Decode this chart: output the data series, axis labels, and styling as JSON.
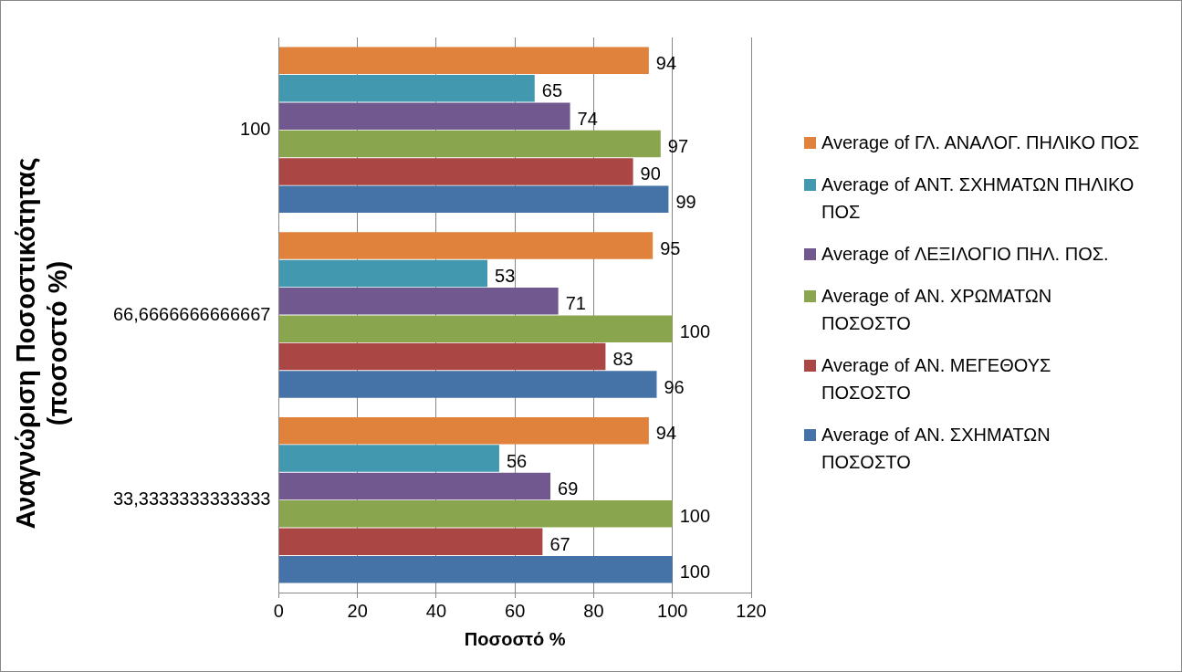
{
  "chart_data": {
    "type": "bar",
    "orientation": "horizontal",
    "xlabel": "Ποσοστό %",
    "ylabel": "Αναγνώριση Ποσοστικότητας (ποσοστό %)",
    "categories": [
      "100",
      "66,6666666666667",
      "33,3333333333333"
    ],
    "series": [
      {
        "name": "Average of ΓΛ. ΑΝΑΛΟΓ. ΠΗΛΙΚΟ ΠΟΣ",
        "color": "#e0823c",
        "values": [
          94,
          95,
          94
        ]
      },
      {
        "name": "Average of ΑΝΤ. ΣΧΗΜΑΤΩΝ ΠΗΛΙΚΟ ΠΟΣ",
        "color": "#4198af",
        "values": [
          65,
          53,
          56
        ]
      },
      {
        "name": "Average of ΛΕΞΙΛΟΓΙΟ ΠΗΛ. ΠΟΣ.",
        "color": "#71588f",
        "values": [
          74,
          71,
          69
        ]
      },
      {
        "name": "Average of ΑΝ. ΧΡΩΜΑΤΩΝ ΠΟΣΟΣΤΟ",
        "color": "#89a54e",
        "values": [
          97,
          100,
          100
        ]
      },
      {
        "name": "Average of ΑΝ. ΜΕΓΕΘΟΥΣ ΠΟΣΟΣΤΟ",
        "color": "#aa4643",
        "values": [
          90,
          83,
          67
        ]
      },
      {
        "name": "Average of ΑΝ. ΣΧΗΜΑΤΩΝ ΠΟΣΟΣΤΟ",
        "color": "#4572a7",
        "values": [
          99,
          96,
          100
        ]
      }
    ],
    "xlim": [
      0,
      120
    ],
    "xticks": [
      0,
      20,
      40,
      60,
      80,
      100,
      120
    ],
    "grid": "x",
    "legend": "right",
    "data_labels": true
  }
}
